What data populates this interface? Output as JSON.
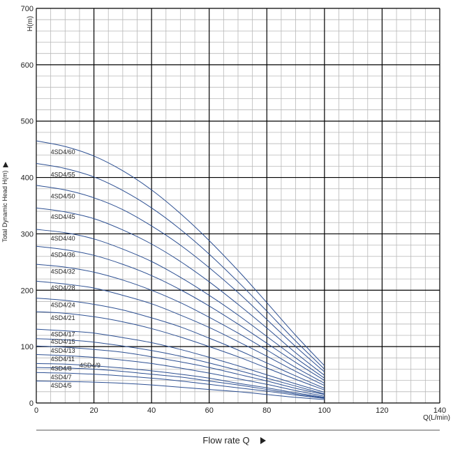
{
  "chart_data": {
    "type": "line",
    "title": "",
    "xlabel": "Flow rate Q",
    "x_unit": "Q(L/min)",
    "ylabel": "Total Dynamic Head H(m)",
    "y_unit": "H(m)",
    "xlim": [
      0,
      140
    ],
    "ylim": [
      0,
      700
    ],
    "x_ticks": [
      "0",
      "20",
      "40",
      "60",
      "80",
      "100",
      "120",
      "140"
    ],
    "y_ticks": [
      "0",
      "100",
      "200",
      "300",
      "400",
      "500",
      "600",
      "700"
    ],
    "grid": true,
    "colors": {
      "curve": "#2c4f92",
      "grid": "#b8b8b8",
      "grid_major": "#000000"
    },
    "x": [
      0,
      10,
      20,
      30,
      40,
      50,
      60,
      70,
      80,
      90,
      100
    ],
    "series": [
      {
        "name": "4SD4/60",
        "label_y": 445,
        "values": [
          465,
          455,
          438,
          412,
          378,
          336,
          288,
          235,
          178,
          120,
          66
        ]
      },
      {
        "name": "4SD4/55",
        "label_y": 405,
        "values": [
          425,
          416,
          401,
          377,
          346,
          308,
          264,
          215,
          163,
          110,
          60
        ]
      },
      {
        "name": "4SD4/50",
        "label_y": 367,
        "values": [
          386,
          378,
          364,
          343,
          314,
          280,
          240,
          196,
          148,
          100,
          55
        ]
      },
      {
        "name": "4SD4/45",
        "label_y": 330,
        "values": [
          346,
          339,
          327,
          307,
          282,
          251,
          215,
          175,
          133,
          89,
          49
        ]
      },
      {
        "name": "4SD4/40",
        "label_y": 292,
        "values": [
          308,
          302,
          291,
          273,
          251,
          223,
          191,
          156,
          118,
          80,
          44
        ]
      },
      {
        "name": "4SD4/36",
        "label_y": 263,
        "values": [
          278,
          272,
          262,
          246,
          226,
          201,
          172,
          140,
          106,
          72,
          40
        ]
      },
      {
        "name": "4SD4/32",
        "label_y": 233,
        "values": [
          246,
          241,
          232,
          218,
          200,
          178,
          152,
          124,
          94,
          63,
          35
        ]
      },
      {
        "name": "4SD4/28",
        "label_y": 204,
        "values": [
          216,
          211,
          204,
          191,
          176,
          156,
          134,
          109,
          83,
          56,
          31
        ]
      },
      {
        "name": "4SD4/24",
        "label_y": 174,
        "values": [
          186,
          182,
          175,
          165,
          151,
          135,
          115,
          94,
          71,
          48,
          26
        ]
      },
      {
        "name": "4SD4/21",
        "label_y": 151,
        "values": [
          162,
          159,
          153,
          144,
          132,
          117,
          100,
          82,
          62,
          42,
          23
        ]
      },
      {
        "name": "4SD4/17",
        "label_y": 122,
        "values": [
          131,
          128,
          124,
          116,
          107,
          95,
          81,
          66,
          50,
          34,
          19
        ]
      },
      {
        "name": "4SD4/15",
        "label_y": 109,
        "values": [
          114,
          112,
          108,
          101,
          93,
          83,
          71,
          58,
          44,
          30,
          16
        ]
      },
      {
        "name": "4SD4/13",
        "label_y": 93,
        "values": [
          101,
          99,
          95,
          90,
          82,
          73,
          63,
          51,
          39,
          26,
          15
        ]
      },
      {
        "name": "4SD4/11",
        "label_y": 78,
        "values": [
          86,
          84,
          81,
          76,
          70,
          62,
          53,
          43,
          33,
          22,
          12
        ]
      },
      {
        "name": "4SD4/9",
        "label_y": 67,
        "label_x": 15,
        "values": [
          70,
          69,
          66,
          62,
          57,
          51,
          44,
          35,
          27,
          18,
          10
        ]
      },
      {
        "name": "4SD4/8",
        "label_y": 61,
        "values": [
          63,
          62,
          60,
          56,
          51,
          46,
          39,
          32,
          24,
          16,
          9
        ]
      },
      {
        "name": "4SD4/7",
        "label_y": 46,
        "values": [
          54,
          53,
          51,
          48,
          44,
          39,
          33,
          27,
          21,
          14,
          8
        ]
      },
      {
        "name": "4SD4/5",
        "label_y": 31,
        "values": [
          39,
          38,
          37,
          35,
          32,
          28,
          24,
          20,
          15,
          10,
          6
        ]
      }
    ]
  }
}
